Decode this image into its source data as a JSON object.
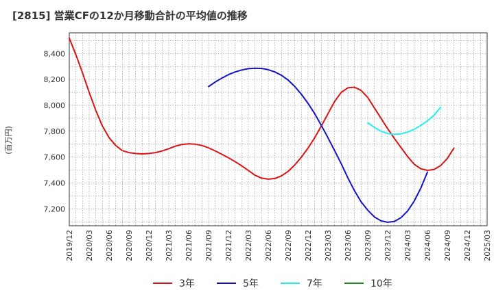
{
  "page_title": "[2815]  営業CFの12か月移動合計の平均値の推移",
  "chart_data": {
    "type": "line",
    "title": "[2815]  営業CFの12か月移動合計の平均値の推移",
    "ylabel": "(百万円)",
    "xlabel": "",
    "ylim": [
      7070,
      8560
    ],
    "yticks": [
      7200,
      7400,
      7600,
      7800,
      8000,
      8200,
      8400
    ],
    "ytick_labels": [
      "7,200",
      "7,400",
      "7,600",
      "7,800",
      "8,000",
      "8,200",
      "8,400"
    ],
    "xlim": [
      "2019-12",
      "2025-03"
    ],
    "xtick_labels": [
      "2019/12",
      "2020/03",
      "2020/06",
      "2020/09",
      "2020/12",
      "2021/03",
      "2021/06",
      "2021/09",
      "2021/12",
      "2022/03",
      "2022/06",
      "2022/09",
      "2022/12",
      "2023/03",
      "2023/06",
      "2023/09",
      "2023/12",
      "2024/03",
      "2024/06",
      "2024/09",
      "2024/12",
      "2025/03"
    ],
    "grid": true,
    "legend_position": "bottom",
    "series": [
      {
        "name": "3年",
        "color": "#dd1111",
        "points": [
          [
            "2019-12",
            8520
          ],
          [
            "2020-01",
            8390
          ],
          [
            "2020-02",
            8250
          ],
          [
            "2020-03",
            8100
          ],
          [
            "2020-04",
            7960
          ],
          [
            "2020-05",
            7840
          ],
          [
            "2020-06",
            7750
          ],
          [
            "2020-07",
            7690
          ],
          [
            "2020-08",
            7650
          ],
          [
            "2020-09",
            7635
          ],
          [
            "2020-10",
            7628
          ],
          [
            "2020-11",
            7625
          ],
          [
            "2020-12",
            7628
          ],
          [
            "2021-01",
            7635
          ],
          [
            "2021-02",
            7648
          ],
          [
            "2021-03",
            7665
          ],
          [
            "2021-04",
            7685
          ],
          [
            "2021-05",
            7698
          ],
          [
            "2021-06",
            7703
          ],
          [
            "2021-07",
            7700
          ],
          [
            "2021-08",
            7690
          ],
          [
            "2021-09",
            7672
          ],
          [
            "2021-10",
            7648
          ],
          [
            "2021-11",
            7622
          ],
          [
            "2021-12",
            7595
          ],
          [
            "2022-01",
            7565
          ],
          [
            "2022-02",
            7533
          ],
          [
            "2022-03",
            7497
          ],
          [
            "2022-04",
            7460
          ],
          [
            "2022-05",
            7438
          ],
          [
            "2022-06",
            7430
          ],
          [
            "2022-07",
            7435
          ],
          [
            "2022-08",
            7455
          ],
          [
            "2022-09",
            7490
          ],
          [
            "2022-10",
            7540
          ],
          [
            "2022-11",
            7600
          ],
          [
            "2022-12",
            7670
          ],
          [
            "2023-01",
            7750
          ],
          [
            "2023-02",
            7840
          ],
          [
            "2023-03",
            7935
          ],
          [
            "2023-04",
            8030
          ],
          [
            "2023-05",
            8100
          ],
          [
            "2023-06",
            8135
          ],
          [
            "2023-07",
            8140
          ],
          [
            "2023-08",
            8115
          ],
          [
            "2023-09",
            8060
          ],
          [
            "2023-10",
            7980
          ],
          [
            "2023-11",
            7900
          ],
          [
            "2023-12",
            7820
          ],
          [
            "2024-01",
            7745
          ],
          [
            "2024-02",
            7675
          ],
          [
            "2024-03",
            7605
          ],
          [
            "2024-04",
            7545
          ],
          [
            "2024-05",
            7510
          ],
          [
            "2024-06",
            7498
          ],
          [
            "2024-07",
            7505
          ],
          [
            "2024-08",
            7535
          ],
          [
            "2024-09",
            7590
          ],
          [
            "2024-10",
            7670
          ]
        ]
      },
      {
        "name": "5年",
        "color": "#1111cc",
        "points": [
          [
            "2021-09",
            8145
          ],
          [
            "2021-10",
            8180
          ],
          [
            "2021-11",
            8210
          ],
          [
            "2021-12",
            8237
          ],
          [
            "2022-01",
            8258
          ],
          [
            "2022-02",
            8273
          ],
          [
            "2022-03",
            8283
          ],
          [
            "2022-04",
            8287
          ],
          [
            "2022-05",
            8285
          ],
          [
            "2022-06",
            8275
          ],
          [
            "2022-07",
            8258
          ],
          [
            "2022-08",
            8232
          ],
          [
            "2022-09",
            8195
          ],
          [
            "2022-10",
            8145
          ],
          [
            "2022-11",
            8085
          ],
          [
            "2022-12",
            8015
          ],
          [
            "2023-01",
            7935
          ],
          [
            "2023-02",
            7845
          ],
          [
            "2023-03",
            7750
          ],
          [
            "2023-04",
            7650
          ],
          [
            "2023-05",
            7550
          ],
          [
            "2023-06",
            7440
          ],
          [
            "2023-07",
            7340
          ],
          [
            "2023-08",
            7255
          ],
          [
            "2023-09",
            7190
          ],
          [
            "2023-10",
            7138
          ],
          [
            "2023-11",
            7108
          ],
          [
            "2023-12",
            7097
          ],
          [
            "2024-01",
            7103
          ],
          [
            "2024-02",
            7132
          ],
          [
            "2024-03",
            7183
          ],
          [
            "2024-04",
            7260
          ],
          [
            "2024-05",
            7360
          ],
          [
            "2024-06",
            7485
          ]
        ]
      },
      {
        "name": "7年",
        "color": "#22eeee",
        "points": [
          [
            "2023-09",
            7865
          ],
          [
            "2023-10",
            7830
          ],
          [
            "2023-11",
            7800
          ],
          [
            "2023-12",
            7782
          ],
          [
            "2024-01",
            7776
          ],
          [
            "2024-02",
            7780
          ],
          [
            "2024-03",
            7793
          ],
          [
            "2024-04",
            7815
          ],
          [
            "2024-05",
            7845
          ],
          [
            "2024-06",
            7880
          ],
          [
            "2024-07",
            7925
          ],
          [
            "2024-08",
            7985
          ]
        ]
      },
      {
        "name": "10年",
        "color": "#228822",
        "points": []
      }
    ]
  }
}
